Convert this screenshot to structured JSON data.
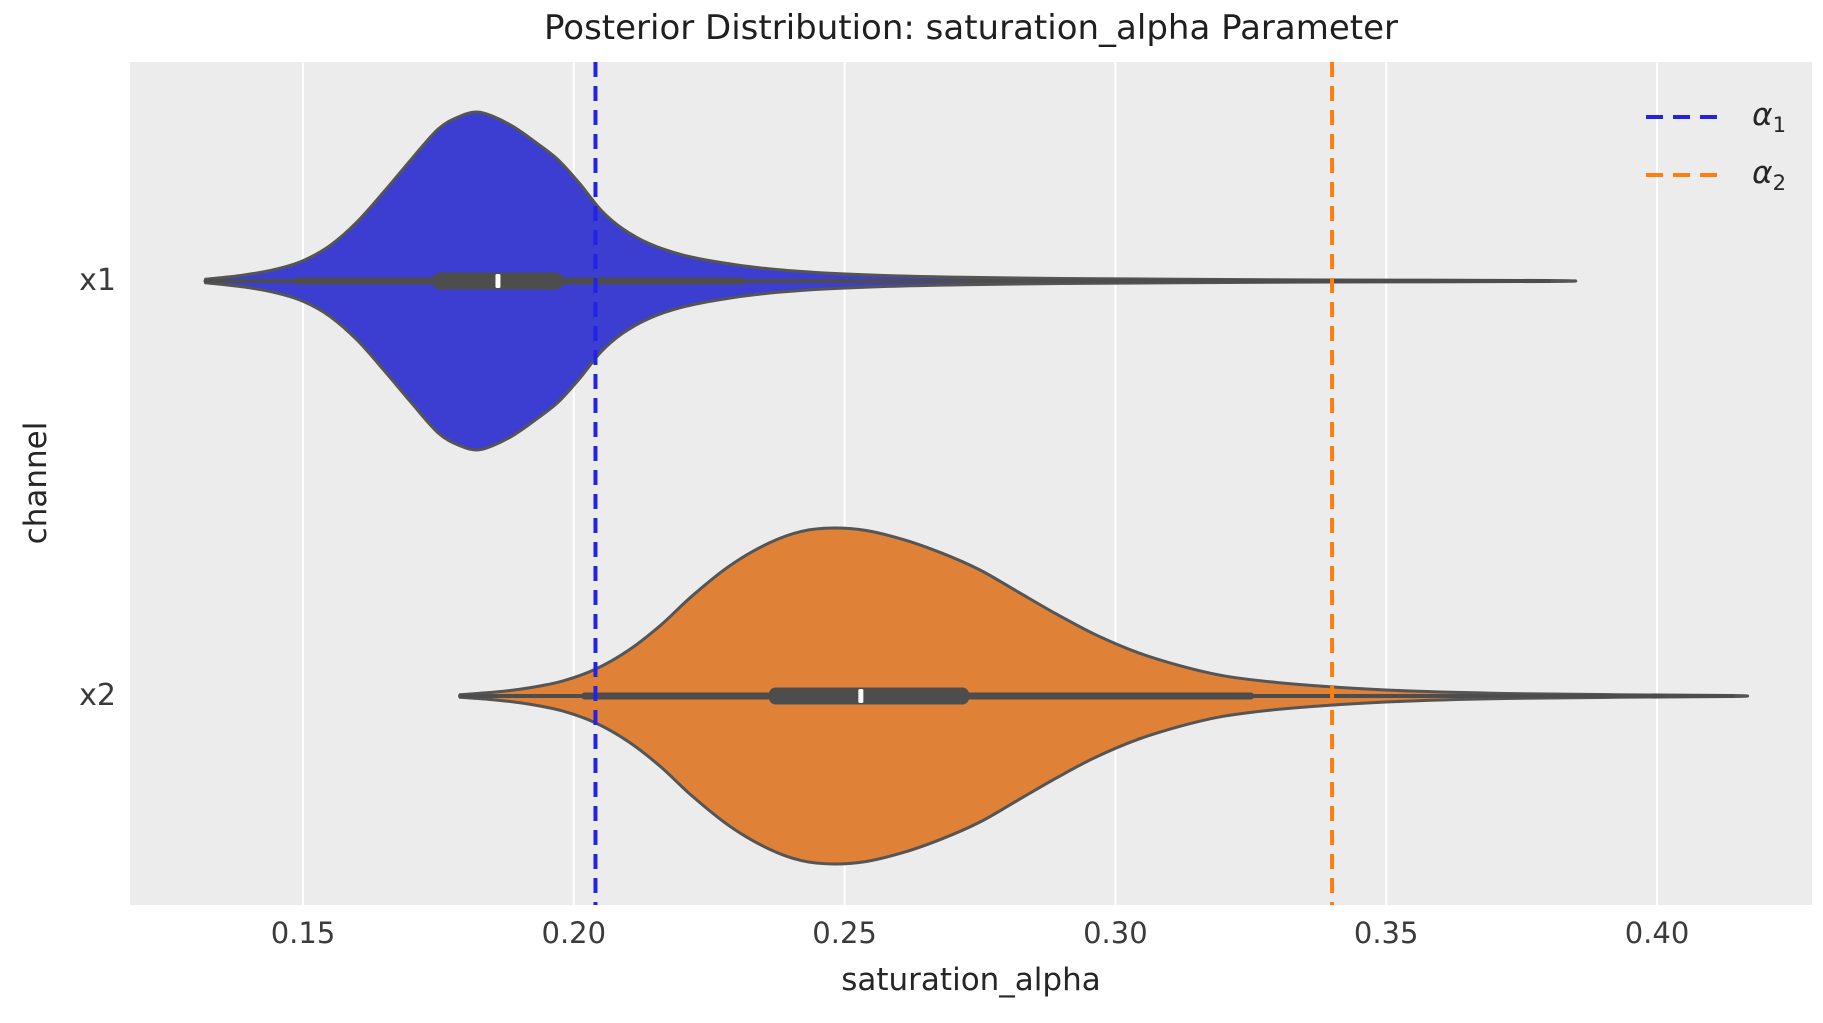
{
  "chart_data": {
    "type": "violin",
    "orientation": "horizontal",
    "title": "Posterior Distribution: saturation_alpha Parameter",
    "xlabel": "saturation_alpha",
    "ylabel": "channel",
    "categories": [
      "x1",
      "x2"
    ],
    "xlim": [
      0.118,
      0.429
    ],
    "xtick_labels": [
      "0.15",
      "0.20",
      "0.25",
      "0.30",
      "0.35",
      "0.40"
    ],
    "xtick_values": [
      0.15,
      0.2,
      0.25,
      0.3,
      0.35,
      0.4
    ],
    "grid": "vertical white gridlines on gray background",
    "legend": {
      "position": "upper right",
      "frame": false,
      "entries": [
        {
          "symbol": "α",
          "sub": "1",
          "color": "#2323e6",
          "linestyle": "dashed"
        },
        {
          "symbol": "α",
          "sub": "2",
          "color": "#ff7f0e",
          "linestyle": "dashed"
        }
      ]
    },
    "vlines": [
      {
        "name": "alpha1",
        "value": 0.204,
        "color": "#2323e6"
      },
      {
        "name": "alpha2",
        "value": 0.34,
        "color": "#ff7f0e"
      }
    ],
    "series": [
      {
        "name": "x1",
        "fill_color": "#3b3ed0",
        "edge_color": "#555555",
        "data_min": 0.132,
        "data_max": 0.38,
        "whisker_low": 0.149,
        "whisker_high": 0.231,
        "q1": 0.174,
        "median": 0.186,
        "q3": 0.198,
        "kde_peak": 0.182,
        "kde_x": [
          0.132,
          0.139,
          0.145,
          0.15,
          0.155,
          0.16,
          0.165,
          0.17,
          0.175,
          0.179,
          0.182,
          0.185,
          0.189,
          0.193,
          0.197,
          0.201,
          0.205,
          0.209,
          0.214,
          0.22,
          0.227,
          0.235,
          0.245,
          0.258,
          0.272,
          0.29,
          0.312,
          0.34,
          0.38
        ],
        "kde_w": [
          0.01,
          0.035,
          0.07,
          0.12,
          0.21,
          0.35,
          0.53,
          0.72,
          0.9,
          0.975,
          1.0,
          0.975,
          0.91,
          0.82,
          0.72,
          0.58,
          0.42,
          0.31,
          0.22,
          0.155,
          0.11,
          0.075,
          0.05,
          0.032,
          0.022,
          0.015,
          0.01,
          0.006,
          0.003
        ]
      },
      {
        "name": "x2",
        "fill_color": "#e08138",
        "edge_color": "#555555",
        "data_min": 0.179,
        "data_max": 0.414,
        "whisker_low": 0.202,
        "whisker_high": 0.325,
        "q1": 0.236,
        "median": 0.253,
        "q3": 0.273,
        "kde_peak": 0.248,
        "kde_x": [
          0.179,
          0.186,
          0.192,
          0.198,
          0.204,
          0.21,
          0.216,
          0.222,
          0.229,
          0.236,
          0.242,
          0.248,
          0.254,
          0.261,
          0.268,
          0.275,
          0.282,
          0.289,
          0.296,
          0.304,
          0.312,
          0.32,
          0.33,
          0.342,
          0.356,
          0.372,
          0.392,
          0.414
        ],
        "kde_w": [
          0.008,
          0.025,
          0.05,
          0.09,
          0.16,
          0.27,
          0.42,
          0.6,
          0.78,
          0.91,
          0.98,
          1.0,
          0.985,
          0.93,
          0.85,
          0.75,
          0.62,
          0.49,
          0.37,
          0.26,
          0.18,
          0.12,
          0.08,
          0.05,
          0.028,
          0.015,
          0.008,
          0.003
        ]
      }
    ]
  },
  "style": {
    "figure_bg": "#ffffff",
    "axes_bg": "#ececec",
    "grid_color": "#ffffff",
    "inner_box_color": "#4d4d4d",
    "median_color": "#ffffff",
    "tick_color": "#3b3b3b",
    "label_color": "#262626"
  }
}
